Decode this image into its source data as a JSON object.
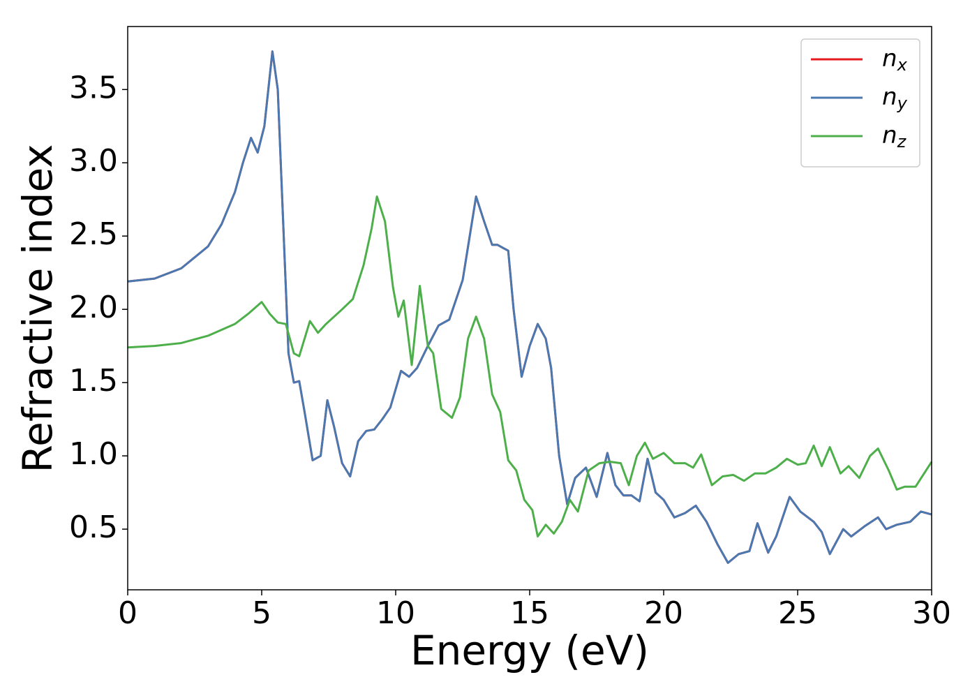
{
  "chart_data": {
    "type": "line",
    "xlabel": "Energy (eV)",
    "ylabel": "Refractive index",
    "xlim": [
      0,
      30
    ],
    "xticks": [
      0,
      5,
      10,
      15,
      20,
      25,
      30
    ],
    "ylim": [
      0.086,
      3.93
    ],
    "yticks": [
      0.5,
      {
        "value": 1.0,
        "label": "1.0"
      },
      1.5,
      {
        "value": 2.0,
        "label": "2.0"
      },
      2.5,
      {
        "value": 3.0,
        "label": "3.0"
      },
      3.5
    ],
    "grid": false,
    "legend": "upper right",
    "series": [
      {
        "name": "nx",
        "color": "#e41a1c",
        "x": [
          0,
          1,
          2,
          3,
          3.5,
          4,
          4.3,
          4.6,
          4.85,
          5.1,
          5.4,
          5.6,
          5.8,
          6.0,
          6.2,
          6.4,
          6.6,
          6.9,
          7.2,
          7.45,
          7.7,
          8.0,
          8.3,
          8.6,
          8.9,
          9.2,
          9.5,
          9.8,
          10.2,
          10.5,
          10.8,
          11.2,
          11.6,
          12.0,
          12.5,
          13.0,
          13.3,
          13.6,
          13.8,
          14.0,
          14.2,
          14.4,
          14.7,
          15.0,
          15.3,
          15.6,
          15.8,
          16.1,
          16.4,
          16.7,
          17.1,
          17.5,
          17.9,
          18.2,
          18.5,
          18.8,
          19.1,
          19.4,
          19.7,
          20.0,
          20.4,
          20.8,
          21.2,
          21.6,
          22.0,
          22.4,
          22.8,
          23.2,
          23.5,
          23.9,
          24.2,
          24.7,
          25.1,
          25.6,
          25.9,
          26.2,
          26.7,
          27.0,
          27.5,
          28.0,
          28.3,
          28.7,
          29.2,
          29.6,
          30
        ],
        "values": [
          2.19,
          2.21,
          2.28,
          2.43,
          2.58,
          2.8,
          3.0,
          3.17,
          3.07,
          3.25,
          3.76,
          3.5,
          2.6,
          1.7,
          1.5,
          1.51,
          1.3,
          0.97,
          1.0,
          1.38,
          1.2,
          0.95,
          0.86,
          1.1,
          1.17,
          1.18,
          1.25,
          1.33,
          1.58,
          1.54,
          1.6,
          1.75,
          1.89,
          1.93,
          2.2,
          2.77,
          2.6,
          2.44,
          2.44,
          2.42,
          2.4,
          2.0,
          1.54,
          1.75,
          1.9,
          1.8,
          1.6,
          1.0,
          0.67,
          0.85,
          0.92,
          0.72,
          1.02,
          0.8,
          0.73,
          0.73,
          0.69,
          0.98,
          0.75,
          0.7,
          0.58,
          0.61,
          0.66,
          0.55,
          0.4,
          0.27,
          0.33,
          0.35,
          0.54,
          0.34,
          0.45,
          0.72,
          0.62,
          0.55,
          0.48,
          0.33,
          0.5,
          0.45,
          0.52,
          0.58,
          0.5,
          0.53,
          0.55,
          0.62,
          0.6
        ]
      },
      {
        "name": "ny",
        "color": "#4a78b0",
        "x": [
          0,
          1,
          2,
          3,
          3.5,
          4,
          4.3,
          4.6,
          4.85,
          5.1,
          5.4,
          5.6,
          5.8,
          6.0,
          6.2,
          6.4,
          6.6,
          6.9,
          7.2,
          7.45,
          7.7,
          8.0,
          8.3,
          8.6,
          8.9,
          9.2,
          9.5,
          9.8,
          10.2,
          10.5,
          10.8,
          11.2,
          11.6,
          12.0,
          12.5,
          13.0,
          13.3,
          13.6,
          13.8,
          14.0,
          14.2,
          14.4,
          14.7,
          15.0,
          15.3,
          15.6,
          15.8,
          16.1,
          16.4,
          16.7,
          17.1,
          17.5,
          17.9,
          18.2,
          18.5,
          18.8,
          19.1,
          19.4,
          19.7,
          20.0,
          20.4,
          20.8,
          21.2,
          21.6,
          22.0,
          22.4,
          22.8,
          23.2,
          23.5,
          23.9,
          24.2,
          24.7,
          25.1,
          25.6,
          25.9,
          26.2,
          26.7,
          27.0,
          27.5,
          28.0,
          28.3,
          28.7,
          29.2,
          29.6,
          30
        ],
        "values": [
          2.19,
          2.21,
          2.28,
          2.43,
          2.58,
          2.8,
          3.0,
          3.17,
          3.07,
          3.25,
          3.76,
          3.5,
          2.6,
          1.7,
          1.5,
          1.51,
          1.3,
          0.97,
          1.0,
          1.38,
          1.2,
          0.95,
          0.86,
          1.1,
          1.17,
          1.18,
          1.25,
          1.33,
          1.58,
          1.54,
          1.6,
          1.75,
          1.89,
          1.93,
          2.2,
          2.77,
          2.6,
          2.44,
          2.44,
          2.42,
          2.4,
          2.0,
          1.54,
          1.75,
          1.9,
          1.8,
          1.6,
          1.0,
          0.67,
          0.85,
          0.92,
          0.72,
          1.02,
          0.8,
          0.73,
          0.73,
          0.69,
          0.98,
          0.75,
          0.7,
          0.58,
          0.61,
          0.66,
          0.55,
          0.4,
          0.27,
          0.33,
          0.35,
          0.54,
          0.34,
          0.45,
          0.72,
          0.62,
          0.55,
          0.48,
          0.33,
          0.5,
          0.45,
          0.52,
          0.58,
          0.5,
          0.53,
          0.55,
          0.62,
          0.6
        ]
      },
      {
        "name": "nz",
        "color": "#4daf4a",
        "x": [
          0,
          1,
          2,
          3,
          4,
          4.5,
          5.0,
          5.3,
          5.6,
          5.9,
          6.2,
          6.4,
          6.8,
          7.1,
          7.4,
          8.0,
          8.4,
          8.8,
          9.1,
          9.3,
          9.6,
          9.9,
          10.1,
          10.3,
          10.6,
          10.9,
          11.2,
          11.4,
          11.7,
          12.1,
          12.4,
          12.7,
          13.0,
          13.3,
          13.6,
          13.9,
          14.2,
          14.5,
          14.8,
          15.1,
          15.3,
          15.6,
          15.9,
          16.2,
          16.5,
          16.8,
          17.2,
          17.6,
          18.0,
          18.4,
          18.7,
          19.0,
          19.3,
          19.6,
          20.0,
          20.4,
          20.8,
          21.1,
          21.4,
          21.8,
          22.2,
          22.6,
          23.0,
          23.4,
          23.8,
          24.2,
          24.6,
          25.0,
          25.3,
          25.6,
          25.9,
          26.2,
          26.6,
          26.9,
          27.3,
          27.7,
          28.0,
          28.4,
          28.7,
          29.0,
          29.4,
          30
        ],
        "values": [
          1.74,
          1.75,
          1.77,
          1.82,
          1.9,
          1.97,
          2.05,
          1.97,
          1.91,
          1.9,
          1.7,
          1.68,
          1.92,
          1.84,
          1.9,
          2.0,
          2.07,
          2.3,
          2.55,
          2.77,
          2.6,
          2.15,
          1.95,
          2.06,
          1.62,
          2.16,
          1.75,
          1.7,
          1.32,
          1.26,
          1.4,
          1.8,
          1.95,
          1.8,
          1.42,
          1.3,
          0.97,
          0.9,
          0.7,
          0.63,
          0.45,
          0.53,
          0.47,
          0.55,
          0.7,
          0.62,
          0.9,
          0.95,
          0.96,
          0.95,
          0.8,
          1.0,
          1.09,
          0.98,
          1.02,
          0.95,
          0.95,
          0.92,
          1.01,
          0.8,
          0.86,
          0.87,
          0.83,
          0.88,
          0.88,
          0.92,
          0.98,
          0.94,
          0.95,
          1.07,
          0.93,
          1.06,
          0.88,
          0.93,
          0.85,
          1.0,
          1.05,
          0.9,
          0.77,
          0.79,
          0.79,
          0.96
        ]
      }
    ]
  }
}
